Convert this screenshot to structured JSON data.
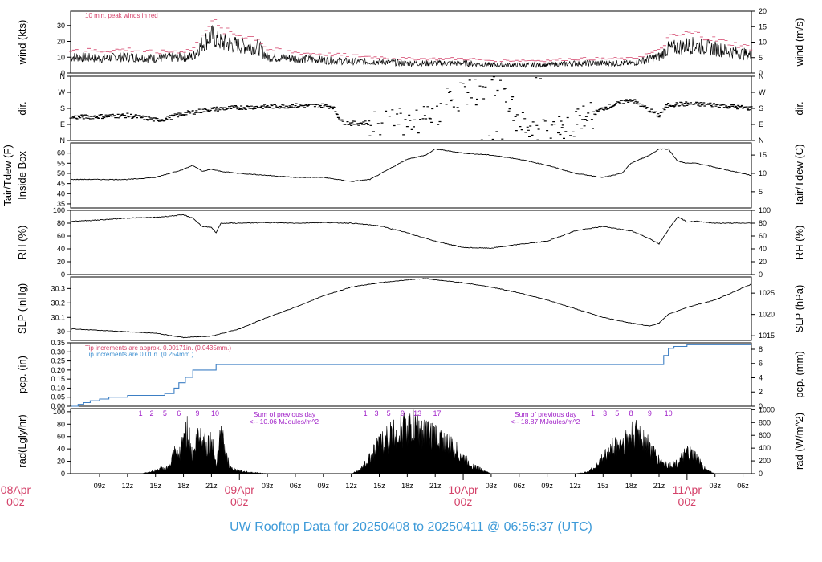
{
  "title": "UW Rooftop Data for 20250408  to  20250411 @ 06:56:37  (UTC)",
  "colors": {
    "trace": "#000000",
    "peak": "#d4426a",
    "pcp_line": "#3d7fc4",
    "pcp_note1": "#d4426a",
    "pcp_note2": "#3d8fd0",
    "rad_note": "#a020c8",
    "date_label": "#d4426a",
    "title": "#3d9ad8"
  },
  "chart_data": {
    "type": "line",
    "title": "UW Rooftop Data for 20250408  to  20250411 @ 06:56:37  (UTC)",
    "x": {
      "unit": "hours since 2025-04-08 00z",
      "range": [
        5.9,
        78.9
      ],
      "hour_ticks": [
        {
          "x": 9,
          "label": "09z"
        },
        {
          "x": 12,
          "label": "12z"
        },
        {
          "x": 15,
          "label": "15z"
        },
        {
          "x": 18,
          "label": "18z"
        },
        {
          "x": 21,
          "label": "21z"
        },
        {
          "x": 27,
          "label": "03z"
        },
        {
          "x": 30,
          "label": "06z"
        },
        {
          "x": 33,
          "label": "09z"
        },
        {
          "x": 36,
          "label": "12z"
        },
        {
          "x": 39,
          "label": "15z"
        },
        {
          "x": 42,
          "label": "18z"
        },
        {
          "x": 45,
          "label": "21z"
        },
        {
          "x": 51,
          "label": "03z"
        },
        {
          "x": 54,
          "label": "06z"
        },
        {
          "x": 57,
          "label": "09z"
        },
        {
          "x": 60,
          "label": "12z"
        },
        {
          "x": 63,
          "label": "15z"
        },
        {
          "x": 66,
          "label": "18z"
        },
        {
          "x": 69,
          "label": "21z"
        },
        {
          "x": 75,
          "label": "03z"
        },
        {
          "x": 78,
          "label": "06z"
        }
      ],
      "date_ticks": [
        {
          "x": 0,
          "label": "08Apr",
          "sub": "00z"
        },
        {
          "x": 24,
          "label": "09Apr",
          "sub": "00z"
        },
        {
          "x": 48,
          "label": "10Apr",
          "sub": "00z"
        },
        {
          "x": 72,
          "label": "11Apr",
          "sub": "00z"
        }
      ]
    },
    "panels": [
      {
        "id": "wind",
        "ylabel": "wind (kts)",
        "ylabel2": "wind (m/s)",
        "ylim": [
          0,
          39
        ],
        "yticks": [
          0,
          10,
          20,
          30
        ],
        "ylim2": [
          0,
          20
        ],
        "yticks2": [
          0,
          5,
          10,
          15,
          20
        ],
        "note": "10 min. peak winds in red",
        "series": [
          {
            "name": "wind",
            "x": [
              6,
              9,
              12,
              15,
              18,
              19,
              20,
              21,
              22,
              24,
              26,
              27,
              30,
              33,
              36,
              39,
              42,
              45,
              48,
              51,
              54,
              57,
              60,
              63,
              66,
              69,
              70,
              72,
              73,
              75,
              78.9
            ],
            "y": [
              10,
              9,
              10,
              9,
              10,
              10,
              18,
              23,
              19,
              17,
              16,
              10,
              9,
              8,
              7,
              7,
              6,
              6,
              6,
              5,
              5,
              5,
              6,
              6,
              6,
              10,
              15,
              17,
              17,
              15,
              11
            ]
          },
          {
            "name": "10 min. peak winds",
            "x": [
              6,
              9,
              12,
              15,
              18,
              19,
              20,
              21,
              22,
              24,
              26,
              27,
              30,
              33,
              36,
              39,
              42,
              45,
              48,
              51,
              54,
              57,
              60,
              63,
              66,
              69,
              70,
              72,
              73,
              75,
              78.9
            ],
            "y": [
              15,
              14,
              15,
              13,
              14,
              15,
              25,
              34,
              27,
              24,
              22,
              15,
              13,
              12,
              11,
              10,
              9,
              9,
              9,
              8,
              8,
              8,
              9,
              9,
              9,
              14,
              22,
              25,
              25,
              21,
              16
            ]
          }
        ]
      },
      {
        "id": "dir",
        "ylabel": "dir.",
        "ylabel2": "dir.",
        "ylim": [
          0,
          360
        ],
        "yticks": [
          0,
          90,
          180,
          270,
          360
        ],
        "yticklabels": [
          "N",
          "E",
          "S",
          "W",
          "N"
        ],
        "yticklabels2": [
          "N",
          "E",
          "S",
          "W",
          "N"
        ],
        "series": [
          {
            "name": "direction",
            "x": [
              6,
              9,
              12,
              14,
              15,
              16,
              18,
              21,
              24,
              27,
              30,
              33,
              34,
              35,
              36,
              38,
              39,
              40,
              42,
              44,
              45,
              46,
              48,
              50,
              52,
              54,
              56,
              58,
              60,
              63,
              66,
              69,
              70,
              72,
              75,
              78.9
            ],
            "y": [
              130,
              135,
              140,
              125,
              115,
              120,
              150,
              175,
              185,
              190,
              195,
              195,
              190,
              105,
              95,
              100,
              110,
              120,
              110,
              115,
              130,
              210,
              250,
              290,
              340,
              80,
              60,
              75,
              90,
              180,
              230,
              140,
              200,
              205,
              200,
              180
            ]
          }
        ]
      },
      {
        "id": "temp",
        "ylabel": "Tair/Tdew (F)",
        "ylabel_extra": "Inside Box",
        "ylabel2": "Tair/Tdew (C)",
        "ylim": [
          33,
          65
        ],
        "yticks": [
          35,
          40,
          45,
          50,
          55,
          60
        ],
        "ylim2": [
          0.6,
          18.3
        ],
        "yticks2": [
          5,
          10,
          15
        ],
        "series": [
          {
            "name": "Tair",
            "x": [
              6,
              9,
              12,
              15,
              18,
              19,
              20,
              21,
              22,
              24,
              27,
              30,
              33,
              36,
              38,
              40,
              42,
              44,
              45,
              48,
              51,
              54,
              57,
              60,
              63,
              65,
              66,
              68,
              69,
              70,
              71,
              72,
              73,
              75,
              78.9
            ],
            "y": [
              47,
              47,
              47,
              48,
              52,
              54,
              51,
              52,
              51,
              50,
              49,
              48,
              48,
              46,
              47,
              52,
              57,
              59,
              62,
              60,
              59,
              57,
              54,
              50,
              48,
              50,
              55,
              59,
              62,
              62,
              56,
              55,
              55,
              53,
              49
            ]
          }
        ]
      },
      {
        "id": "rh",
        "ylabel": "RH (%)",
        "ylabel2": "RH (%)",
        "ylim": [
          0,
          100
        ],
        "yticks": [
          0,
          20,
          40,
          60,
          80,
          100
        ],
        "yticks2": [
          0,
          20,
          40,
          60,
          80,
          100
        ],
        "series": [
          {
            "name": "RH",
            "x": [
              6,
              9,
              12,
              15,
              18,
              19,
              20,
              21,
              21.5,
              22,
              24,
              27,
              30,
              33,
              36,
              39,
              42,
              45,
              48,
              51,
              54,
              57,
              60,
              63,
              66,
              68,
              69,
              70,
              71,
              72,
              73,
              75,
              78.9
            ],
            "y": [
              83,
              85,
              88,
              89,
              93,
              88,
              75,
              73,
              65,
              80,
              80,
              81,
              80,
              81,
              80,
              76,
              65,
              52,
              42,
              41,
              47,
              52,
              68,
              75,
              68,
              56,
              48,
              70,
              90,
              82,
              83,
              80,
              80
            ]
          }
        ]
      },
      {
        "id": "slp",
        "ylabel": "SLP (inHg)",
        "ylabel2": "SLP (hPa)",
        "ylim": [
          29.94,
          30.38
        ],
        "yticks": [
          30.0,
          30.1,
          30.2,
          30.3
        ],
        "ylim2": [
          1013.9,
          1028.8
        ],
        "yticks2": [
          1015,
          1020,
          1025
        ],
        "series": [
          {
            "name": "SLP",
            "x": [
              6,
              9,
              12,
              15,
              18,
              21,
              24,
              27,
              30,
              33,
              36,
              39,
              42,
              44,
              45,
              48,
              51,
              54,
              57,
              60,
              63,
              66,
              67,
              68,
              69,
              70,
              72,
              75,
              78.9
            ],
            "y": [
              30.02,
              30.01,
              30.0,
              29.99,
              29.96,
              29.97,
              30.02,
              30.1,
              30.17,
              30.25,
              30.31,
              30.34,
              30.36,
              30.37,
              30.36,
              30.34,
              30.31,
              30.27,
              30.22,
              30.16,
              30.1,
              30.06,
              30.05,
              30.04,
              30.06,
              30.12,
              30.17,
              30.22,
              30.33
            ]
          }
        ]
      },
      {
        "id": "pcp",
        "ylabel": "pcp. (in)",
        "ylabel2": "pcp. (mm)",
        "ylim": [
          0,
          0.35
        ],
        "yticks": [
          0,
          0.05,
          0.1,
          0.15,
          0.2,
          0.25,
          0.3,
          0.35
        ],
        "yticklabels": [
          "0.00",
          "0.05",
          "0.10",
          "0.15",
          "0.20",
          "0.25",
          "0.30",
          "0.35"
        ],
        "ylim2": [
          0,
          8.9
        ],
        "yticks2": [
          0,
          2,
          4,
          6,
          8
        ],
        "notes": [
          "Tip increments are approx. 0.00171in. (0.0435mm.)",
          "Tip increments are 0.01in. (0.254mm.)"
        ],
        "series": [
          {
            "name": "precipitation",
            "x": [
              6,
              6.7,
              7.3,
              8,
              9,
              10,
              12,
              14,
              16,
              17,
              17.5,
              18.2,
              19,
              21,
              21.5,
              24,
              30,
              36,
              42,
              48,
              54,
              60,
              66,
              68,
              69,
              69.5,
              70,
              70.6,
              72,
              75,
              78.9
            ],
            "y": [
              0,
              0.01,
              0.02,
              0.03,
              0.04,
              0.05,
              0.06,
              0.06,
              0.07,
              0.1,
              0.13,
              0.16,
              0.2,
              0.2,
              0.23,
              0.23,
              0.23,
              0.23,
              0.23,
              0.23,
              0.23,
              0.23,
              0.23,
              0.23,
              0.23,
              0.28,
              0.32,
              0.33,
              0.34,
              0.34,
              0.34
            ]
          }
        ]
      },
      {
        "id": "rad",
        "ylabel": "rad(Lgly/hr)",
        "ylabel2": "rad (W/m^2)",
        "ylim": [
          0,
          105
        ],
        "yticks": [
          0,
          20,
          40,
          60,
          80,
          100
        ],
        "ylim2": [
          0,
          1017
        ],
        "yticks2": [
          0,
          200,
          400,
          600,
          800,
          1000
        ],
        "notes": [
          {
            "x": 25.5,
            "line1": "Sum of previous day",
            "line2": "<--  10.06 MJoules/m^2"
          },
          {
            "x": 53.5,
            "line1": "Sum of previous day",
            "line2": "<--  18.87 MJoules/m^2"
          }
        ],
        "hour_markers": [
          {
            "x": 13.4,
            "label": "1"
          },
          {
            "x": 14.6,
            "label": "2"
          },
          {
            "x": 16,
            "label": "5"
          },
          {
            "x": 17.5,
            "label": "6"
          },
          {
            "x": 19.5,
            "label": "9"
          },
          {
            "x": 21.4,
            "label": "10"
          },
          {
            "x": 37.5,
            "label": "1"
          },
          {
            "x": 38.7,
            "label": "3"
          },
          {
            "x": 40,
            "label": "5"
          },
          {
            "x": 41.5,
            "label": "9"
          },
          {
            "x": 43.1,
            "label": "13"
          },
          {
            "x": 45.2,
            "label": "17"
          },
          {
            "x": 61.9,
            "label": "1"
          },
          {
            "x": 63.2,
            "label": "3"
          },
          {
            "x": 64.5,
            "label": "5"
          },
          {
            "x": 66,
            "label": "8"
          },
          {
            "x": 68,
            "label": "9"
          },
          {
            "x": 70,
            "label": "10"
          }
        ],
        "series": [
          {
            "name": "solar radiation",
            "x": [
              6,
              12,
              13.5,
              14,
              15,
              15.5,
              16,
              16.5,
              17,
              17.5,
              18,
              18.5,
              19,
              19.5,
              20,
              20.5,
              21,
              21.5,
              22,
              22.5,
              23,
              24,
              27,
              30,
              36,
              37,
              38,
              39,
              40,
              41,
              42,
              43,
              44,
              45,
              46,
              47,
              48,
              49,
              51,
              54,
              60,
              61,
              62,
              63,
              64,
              65,
              66,
              67,
              68,
              69,
              70,
              71,
              72,
              73,
              74,
              75,
              78.9
            ],
            "y": [
              0,
              0,
              0,
              2,
              6,
              10,
              9,
              15,
              38,
              30,
              72,
              82,
              28,
              70,
              75,
              55,
              64,
              20,
              80,
              40,
              10,
              5,
              0,
              0,
              0,
              8,
              30,
              55,
              70,
              78,
              88,
              85,
              76,
              70,
              60,
              48,
              30,
              15,
              0,
              0,
              0,
              2,
              10,
              30,
              50,
              58,
              70,
              75,
              50,
              25,
              15,
              20,
              40,
              30,
              8,
              0,
              0
            ]
          }
        ]
      }
    ]
  }
}
